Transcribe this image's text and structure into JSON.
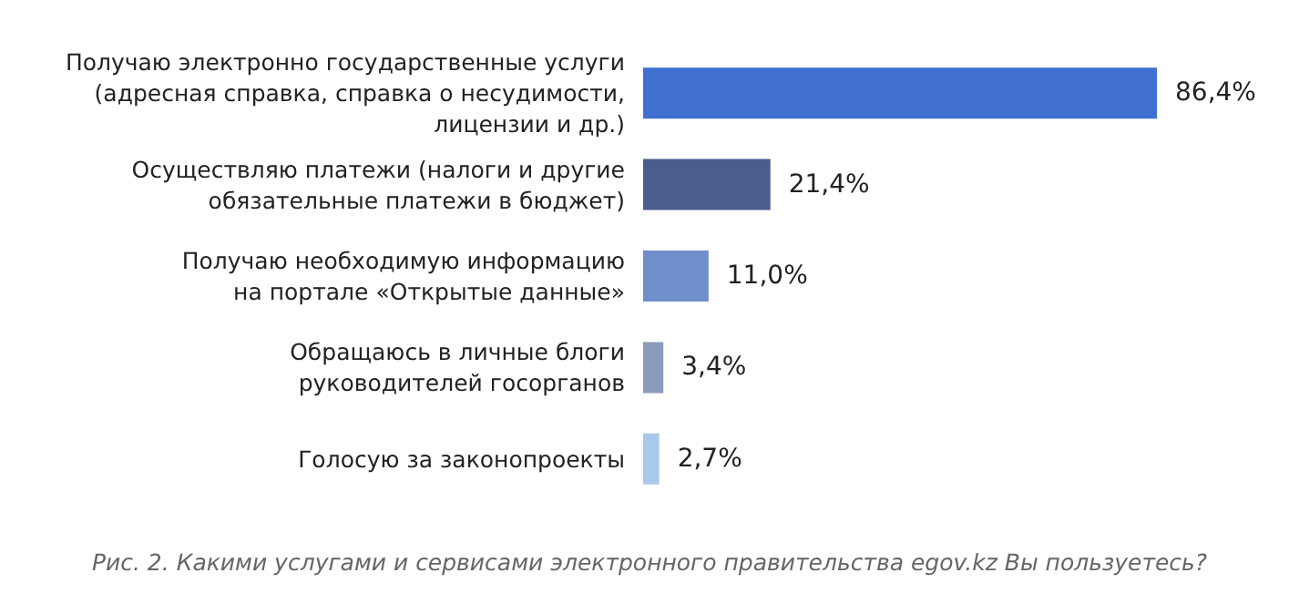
{
  "chart_data": {
    "type": "bar",
    "orientation": "horizontal",
    "categories": [
      "Получаю электронно государственные услуги\n(адресная справка, справка о несудимости,\nлицензии и др.)",
      "Осуществляю платежи (налоги и другие\nобязательные платежи в бюджет)",
      "Получаю необходимую информацию\nна портале «Открытые данные»",
      "Обращаюсь в личные блоги\nруководителей госорганов",
      "Голосую за законопроекты"
    ],
    "values": [
      86.4,
      21.4,
      11.0,
      3.4,
      2.7
    ],
    "colors": [
      "#3f6fd1",
      "#4a5d8e",
      "#6f8fcb",
      "#8a9bb9",
      "#a8c8ec"
    ],
    "value_labels": [
      "86,4%",
      "21,4%",
      "11,0%",
      "3,4%",
      "2,7%"
    ],
    "annotations": [
      "Рис. 2. Какими услугами и сервисами электронного правительства egov.kz Вы пользуетесь?"
    ]
  }
}
